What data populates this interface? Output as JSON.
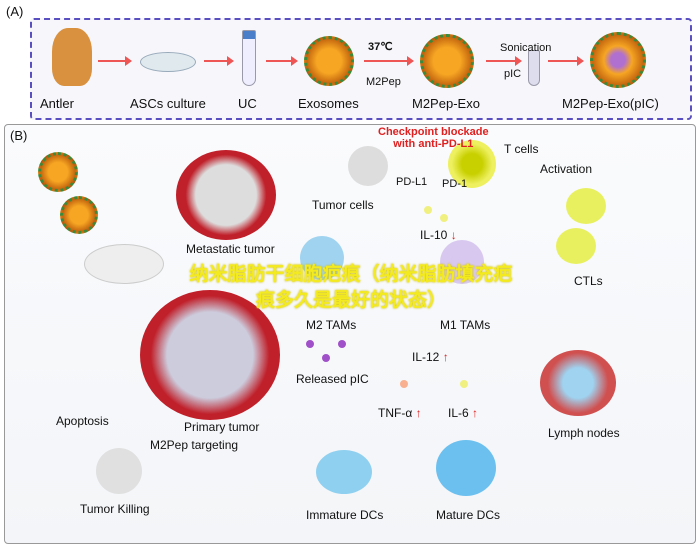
{
  "panel_a": {
    "label": "(A)",
    "steps": [
      "Antler",
      "ASCs culture",
      "UC",
      "Exosomes",
      "M2Pep-Exo",
      "M2Pep-Exo(pIC)"
    ],
    "temp": "37℃",
    "m2pep": "M2Pep",
    "sonication": "Sonication",
    "pic": "pIC"
  },
  "panel_b": {
    "label": "(B)",
    "checkpoint": "Checkpoint blockade\nwith anti-PD-L1",
    "t_cells": "T cells",
    "pd_l1": "PD-L1",
    "pd_1": "PD-1",
    "activation": "Activation",
    "tumor_cells": "Tumor cells",
    "metastatic_tumor": "Metastatic tumor",
    "il10": "IL-10",
    "m2_tams": "M2 TAMs",
    "m1_tams": "M1 TAMs",
    "ctls": "CTLs",
    "il12": "IL-12",
    "released_pic": "Released pIC",
    "primary_tumor": "Primary tumor",
    "m2pep_targeting": "M2Pep targeting",
    "apoptosis": "Apoptosis",
    "tumor_killing": "Tumor Killing",
    "tnf": "TNF-α",
    "il6": "IL-6",
    "lymph_nodes": "Lymph nodes",
    "immature_dcs": "Immature DCs",
    "mature_dcs": "Mature DCs",
    "up_arrow": "↑",
    "down_arrow": "↓"
  },
  "overlay_text": "纳米脂肪干细胞疤痕（纳米脂肪填充疤痕多久是最好的状态）",
  "colors": {
    "border": "#5a4fc0",
    "arrow": "#e55555",
    "accent_red": "#e02020",
    "overlay": "#f4ea20"
  }
}
